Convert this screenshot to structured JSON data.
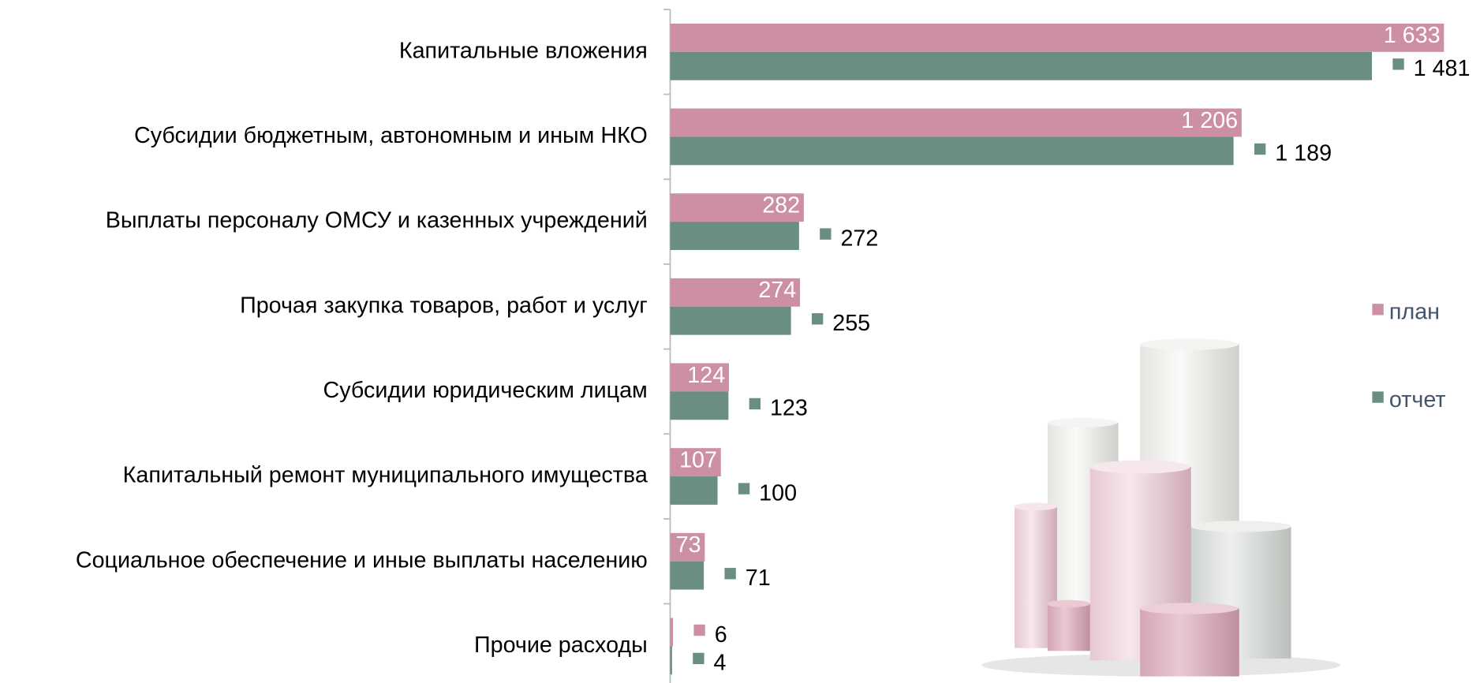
{
  "chart_data": {
    "type": "bar",
    "orientation": "horizontal",
    "categories": [
      "Капитальные вложения",
      "Субсидии бюджетным, автономным и иным НКО",
      "Выплаты персоналу ОМСУ и казенных учреждений",
      "Прочая закупка товаров, работ и услуг",
      "Субсидии юридическим лицам",
      "Капитальный ремонт муниципального имущества",
      "Социальное обеспечение и иные выплаты населению",
      "Прочие расходы"
    ],
    "series": [
      {
        "name": "план",
        "color": "#cc8fa3",
        "values": [
          1633,
          1206,
          282,
          274,
          124,
          107,
          73,
          6
        ],
        "value_labels": [
          "1 633",
          "1 206",
          "282",
          "274",
          "124",
          "107",
          "73",
          "6"
        ]
      },
      {
        "name": "отчет",
        "color": "#6a8f80",
        "values": [
          1481,
          1189,
          272,
          255,
          123,
          100,
          71,
          4
        ],
        "value_labels": [
          "1 481",
          "1 189",
          "272",
          "255",
          "123",
          "100",
          "71",
          "4"
        ]
      }
    ],
    "legend": "right"
  }
}
